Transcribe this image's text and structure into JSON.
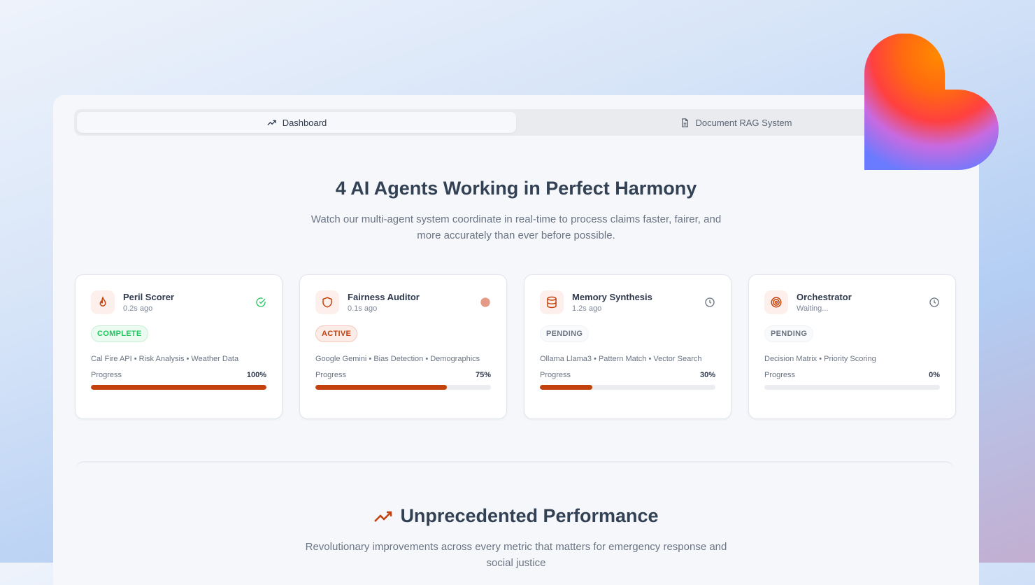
{
  "tabs": [
    {
      "label": "Dashboard",
      "icon": "trending-up-icon",
      "active": true
    },
    {
      "label": "Document RAG System",
      "icon": "file-text-icon",
      "active": false
    }
  ],
  "hero": {
    "title": "4 AI Agents Working in Perfect Harmony",
    "subtitle": "Watch our multi-agent system coordinate in real-time to process claims faster, fairer, and more accurately than ever before possible."
  },
  "agents": [
    {
      "name": "Peril Scorer",
      "time": "0.2s ago",
      "status": "COMPLETE",
      "tags": "Cal Fire API • Risk Analysis • Weather Data",
      "progress_label": "Progress",
      "progress": "100%",
      "icon": "flame-icon",
      "status_icon": "check-circle-icon"
    },
    {
      "name": "Fairness Auditor",
      "time": "0.1s ago",
      "status": "ACTIVE",
      "tags": "Google Gemini • Bias Detection • Demographics",
      "progress_label": "Progress",
      "progress": "75%",
      "icon": "shield-icon",
      "status_icon": "active-dot-icon"
    },
    {
      "name": "Memory Synthesis",
      "time": "1.2s ago",
      "status": "PENDING",
      "tags": "Ollama Llama3 • Pattern Match • Vector Search",
      "progress_label": "Progress",
      "progress": "30%",
      "icon": "database-icon",
      "status_icon": "clock-icon"
    },
    {
      "name": "Orchestrator",
      "time": "Waiting...",
      "status": "PENDING",
      "tags": "Decision Matrix • Priority Scoring",
      "progress_label": "Progress",
      "progress": "0%",
      "icon": "target-icon",
      "status_icon": "clock-icon"
    }
  ],
  "performance": {
    "title": "Unprecedented Performance",
    "subtitle": "Revolutionary improvements across every metric that matters for emergency response and social justice"
  },
  "colors": {
    "accent": "#c2410c",
    "complete": "#22c55e",
    "text": "#334155"
  }
}
